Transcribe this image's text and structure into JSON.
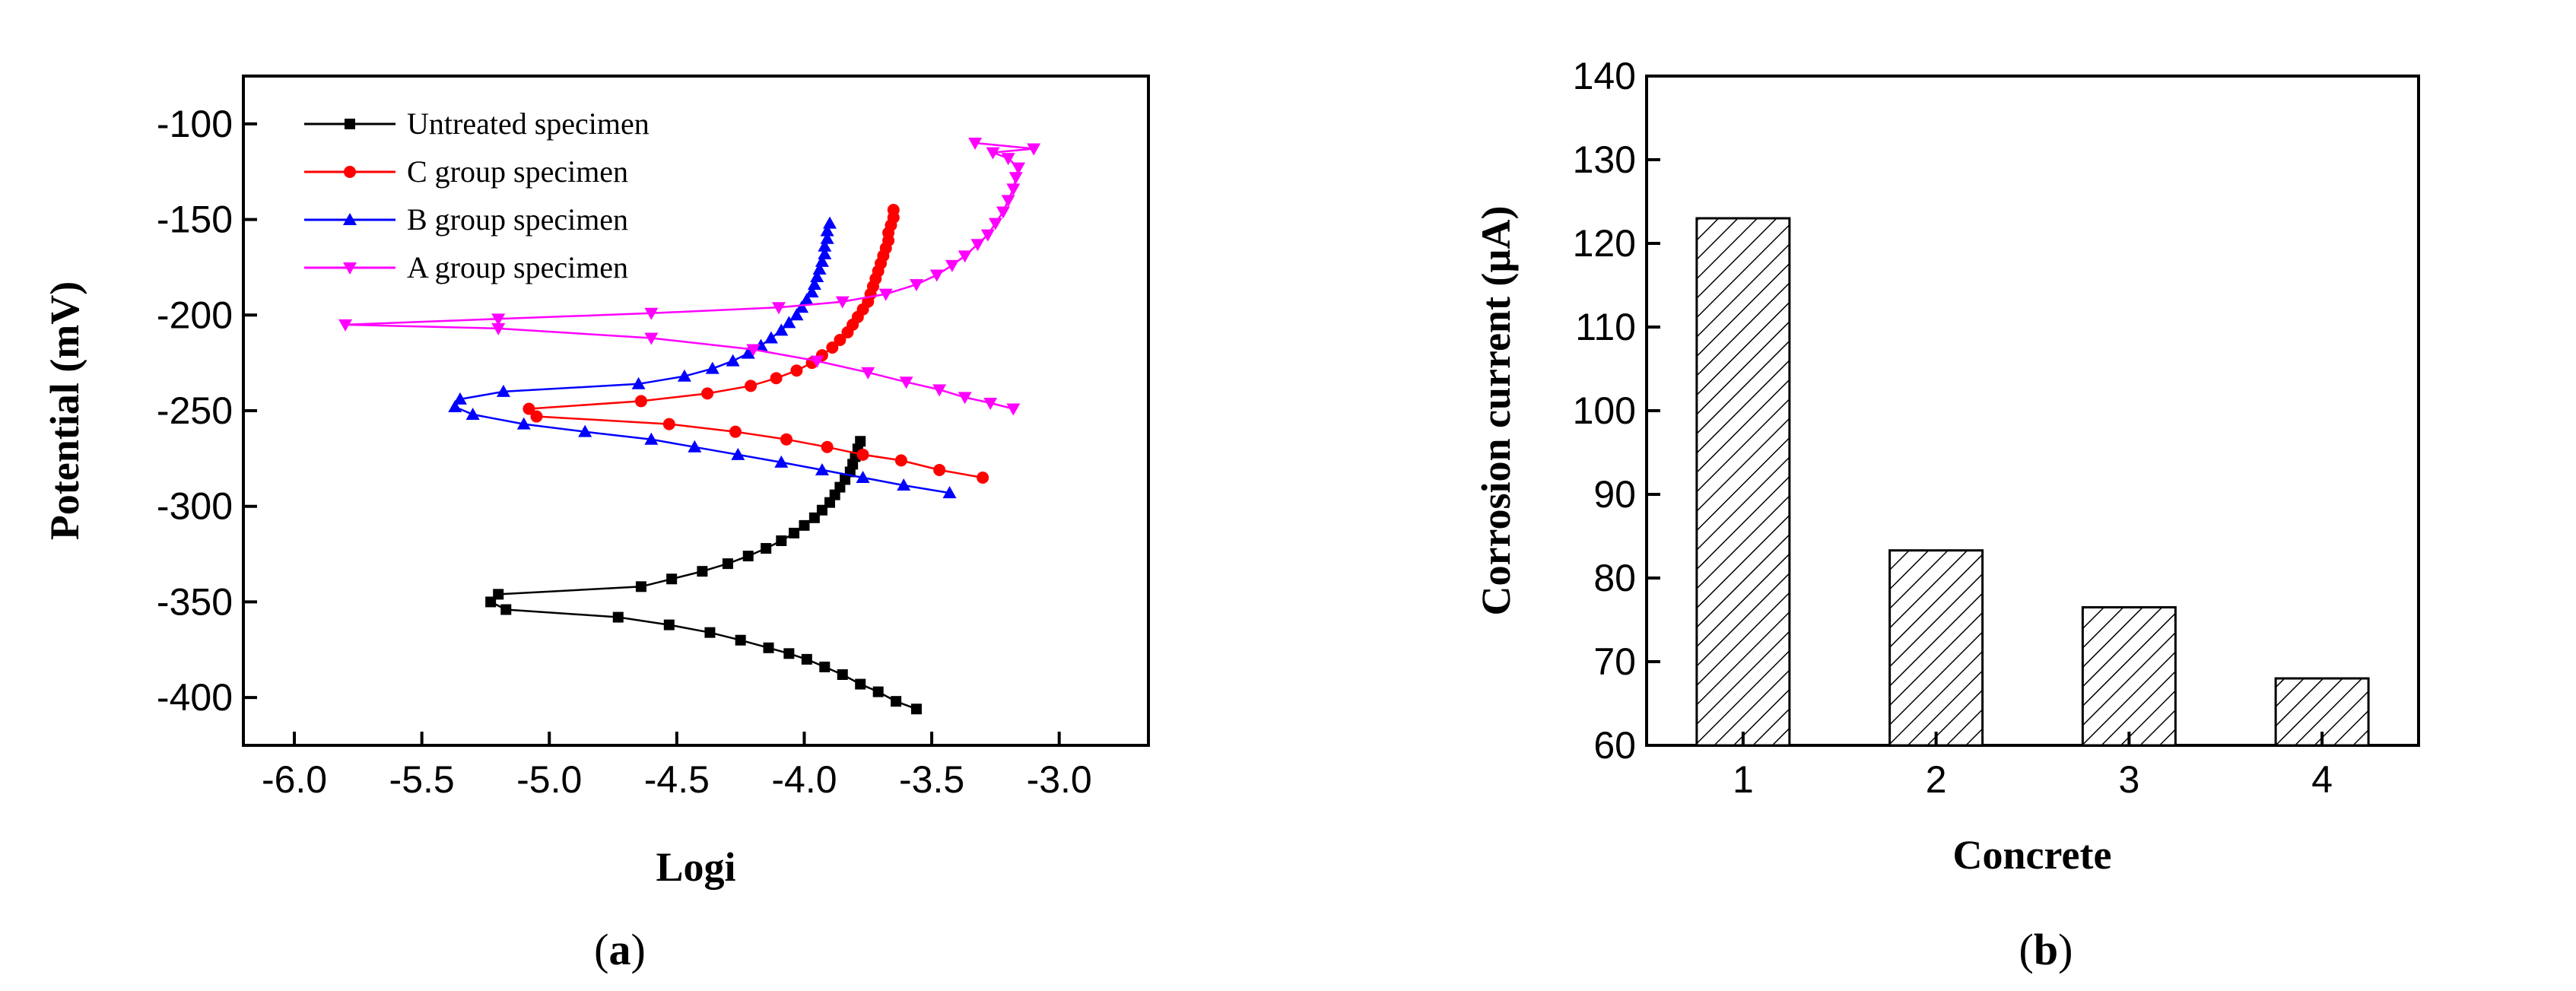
{
  "chart_data": [
    {
      "type": "line",
      "panel": "a",
      "caption": "a",
      "xlabel": "Logi",
      "ylabel": "Potential (mV)",
      "xlim": [
        -6.2,
        -2.65
      ],
      "ylim": [
        -425,
        -75
      ],
      "xticks": [
        -6.0,
        -5.5,
        -5.0,
        -4.5,
        -4.0,
        -3.5,
        -3.0
      ],
      "xtick_labels": [
        "-6.0",
        "-5.5",
        "-5.0",
        "-4.5",
        "-4.0",
        "-3.5",
        "-3.0"
      ],
      "yticks": [
        -100,
        -150,
        -200,
        -250,
        -300,
        -350,
        -400
      ],
      "ytick_labels": [
        "-100",
        "-150",
        "-200",
        "-250",
        "-300",
        "-350",
        "-400"
      ],
      "legend_position": "top-left",
      "series": [
        {
          "name": "Untreated specimen",
          "color": "#000000",
          "marker": "square",
          "points": [
            [
              -3.56,
              -406
            ],
            [
              -3.64,
              -402
            ],
            [
              -3.71,
              -397
            ],
            [
              -3.78,
              -393
            ],
            [
              -3.85,
              -388
            ],
            [
              -3.92,
              -384
            ],
            [
              -3.99,
              -380
            ],
            [
              -4.06,
              -377
            ],
            [
              -4.14,
              -374
            ],
            [
              -4.25,
              -370
            ],
            [
              -4.37,
              -366
            ],
            [
              -4.53,
              -362
            ],
            [
              -4.73,
              -358
            ],
            [
              -5.17,
              -354
            ],
            [
              -5.23,
              -350
            ],
            [
              -5.2,
              -346
            ],
            [
              -4.64,
              -342
            ],
            [
              -4.52,
              -338
            ],
            [
              -4.4,
              -334
            ],
            [
              -4.3,
              -330
            ],
            [
              -4.22,
              -326
            ],
            [
              -4.15,
              -322
            ],
            [
              -4.09,
              -318
            ],
            [
              -4.04,
              -314
            ],
            [
              -4.0,
              -310
            ],
            [
              -3.96,
              -306
            ],
            [
              -3.93,
              -302
            ],
            [
              -3.9,
              -298
            ],
            [
              -3.88,
              -294
            ],
            [
              -3.86,
              -290
            ],
            [
              -3.84,
              -286
            ],
            [
              -3.82,
              -282
            ],
            [
              -3.81,
              -278
            ],
            [
              -3.8,
              -274
            ],
            [
              -3.79,
              -270
            ],
            [
              -3.78,
              -266
            ]
          ]
        },
        {
          "name": "C group specimen",
          "color": "#ff0000",
          "marker": "circle",
          "points": [
            [
              -3.3,
              -285
            ],
            [
              -3.47,
              -281
            ],
            [
              -3.62,
              -276
            ],
            [
              -3.77,
              -273
            ],
            [
              -3.91,
              -269
            ],
            [
              -4.07,
              -265
            ],
            [
              -4.27,
              -261
            ],
            [
              -4.53,
              -257
            ],
            [
              -5.05,
              -253
            ],
            [
              -5.08,
              -249
            ],
            [
              -4.64,
              -245
            ],
            [
              -4.38,
              -241
            ],
            [
              -4.21,
              -237
            ],
            [
              -4.11,
              -233
            ],
            [
              -4.03,
              -229
            ],
            [
              -3.97,
              -225
            ],
            [
              -3.93,
              -221
            ],
            [
              -3.89,
              -217
            ],
            [
              -3.86,
              -213
            ],
            [
              -3.83,
              -209
            ],
            [
              -3.81,
              -205
            ],
            [
              -3.79,
              -201
            ],
            [
              -3.77,
              -197
            ],
            [
              -3.75,
              -193
            ],
            [
              -3.74,
              -189
            ],
            [
              -3.73,
              -185
            ],
            [
              -3.72,
              -181
            ],
            [
              -3.71,
              -177
            ],
            [
              -3.7,
              -173
            ],
            [
              -3.69,
              -169
            ],
            [
              -3.68,
              -165
            ],
            [
              -3.67,
              -161
            ],
            [
              -3.67,
              -157
            ],
            [
              -3.66,
              -153
            ],
            [
              -3.65,
              -149
            ],
            [
              -3.65,
              -145
            ]
          ]
        },
        {
          "name": "B group specimen",
          "color": "#0000ff",
          "marker": "triangle-up",
          "points": [
            [
              -3.43,
              -293
            ],
            [
              -3.61,
              -289
            ],
            [
              -3.77,
              -285
            ],
            [
              -3.93,
              -281
            ],
            [
              -4.09,
              -277
            ],
            [
              -4.26,
              -273
            ],
            [
              -4.43,
              -269
            ],
            [
              -4.6,
              -265
            ],
            [
              -4.86,
              -261
            ],
            [
              -5.1,
              -257
            ],
            [
              -5.3,
              -252
            ],
            [
              -5.37,
              -248
            ],
            [
              -5.35,
              -244
            ],
            [
              -5.18,
              -240
            ],
            [
              -4.65,
              -236
            ],
            [
              -4.47,
              -232
            ],
            [
              -4.36,
              -228
            ],
            [
              -4.28,
              -224
            ],
            [
              -4.22,
              -220
            ],
            [
              -4.17,
              -216
            ],
            [
              -4.13,
              -212
            ],
            [
              -4.09,
              -208
            ],
            [
              -4.06,
              -204
            ],
            [
              -4.03,
              -200
            ],
            [
              -4.01,
              -196
            ],
            [
              -3.99,
              -192
            ],
            [
              -3.97,
              -188
            ],
            [
              -3.96,
              -184
            ],
            [
              -3.95,
              -180
            ],
            [
              -3.94,
              -176
            ],
            [
              -3.93,
              -172
            ],
            [
              -3.92,
              -168
            ],
            [
              -3.92,
              -164
            ],
            [
              -3.91,
              -160
            ],
            [
              -3.91,
              -156
            ],
            [
              -3.9,
              -152
            ]
          ]
        },
        {
          "name": "A group specimen",
          "color": "#ff00ff",
          "marker": "triangle-down",
          "points": [
            [
              -3.18,
              -249
            ],
            [
              -3.27,
              -246
            ],
            [
              -3.37,
              -243
            ],
            [
              -3.47,
              -239
            ],
            [
              -3.6,
              -235
            ],
            [
              -3.75,
              -230
            ],
            [
              -3.95,
              -224
            ],
            [
              -4.2,
              -218
            ],
            [
              -4.6,
              -212
            ],
            [
              -5.2,
              -207
            ],
            [
              -5.8,
              -205
            ],
            [
              -5.2,
              -202
            ],
            [
              -4.6,
              -199
            ],
            [
              -4.1,
              -196
            ],
            [
              -3.85,
              -193
            ],
            [
              -3.68,
              -189
            ],
            [
              -3.56,
              -184
            ],
            [
              -3.48,
              -179
            ],
            [
              -3.42,
              -174
            ],
            [
              -3.37,
              -169
            ],
            [
              -3.32,
              -163
            ],
            [
              -3.28,
              -158
            ],
            [
              -3.25,
              -152
            ],
            [
              -3.22,
              -146
            ],
            [
              -3.2,
              -140
            ],
            [
              -3.18,
              -134
            ],
            [
              -3.17,
              -128
            ],
            [
              -3.16,
              -123
            ],
            [
              -3.2,
              -118
            ],
            [
              -3.26,
              -115
            ],
            [
              -3.1,
              -113
            ],
            [
              -3.33,
              -110
            ]
          ]
        }
      ]
    },
    {
      "type": "bar",
      "panel": "b",
      "caption": "b",
      "xlabel": "Concrete",
      "ylabel": "Corrosion current (µA)",
      "categories": [
        "1",
        "2",
        "3",
        "4"
      ],
      "values": [
        123,
        83.3,
        76.5,
        68
      ],
      "ylim": [
        60,
        140
      ],
      "yticks": [
        60,
        70,
        80,
        90,
        100,
        110,
        120,
        130,
        140
      ],
      "ytick_labels": [
        "60",
        "70",
        "80",
        "90",
        "100",
        "110",
        "120",
        "130",
        "140"
      ],
      "bar_fill": "diagonal-hatch"
    }
  ]
}
